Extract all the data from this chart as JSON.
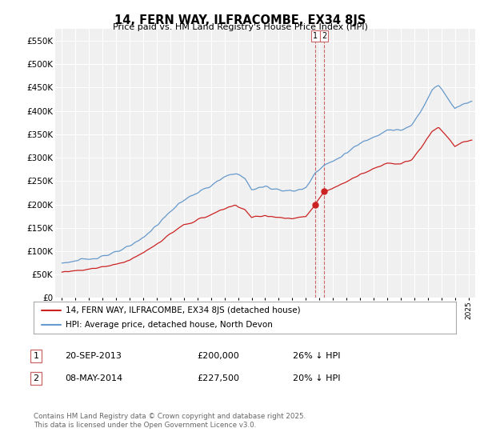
{
  "title": "14, FERN WAY, ILFRACOMBE, EX34 8JS",
  "subtitle": "Price paid vs. HM Land Registry's House Price Index (HPI)",
  "hpi_label": "HPI: Average price, detached house, North Devon",
  "price_label": "14, FERN WAY, ILFRACOMBE, EX34 8JS (detached house)",
  "transactions": [
    {
      "num": 1,
      "date": "20-SEP-2013",
      "price": 200000,
      "hpi_diff": "26% ↓ HPI"
    },
    {
      "num": 2,
      "date": "08-MAY-2014",
      "price": 227500,
      "hpi_diff": "20% ↓ HPI"
    }
  ],
  "transaction_dates_decimal": [
    2013.72,
    2014.35
  ],
  "transaction_prices": [
    200000,
    227500
  ],
  "vline_dates": [
    2013.72,
    2014.35
  ],
  "ylim": [
    0,
    575000
  ],
  "yticks": [
    0,
    50000,
    100000,
    150000,
    200000,
    250000,
    300000,
    350000,
    400000,
    450000,
    500000,
    550000
  ],
  "xlim_start": 1994.5,
  "xlim_end": 2025.5,
  "hpi_color": "#6699cc",
  "price_color": "#cc2222",
  "vline_color": "#cc6666",
  "background_color": "#f0f0f0",
  "grid_color": "#ffffff",
  "footnote": "Contains HM Land Registry data © Crown copyright and database right 2025.\nThis data is licensed under the Open Government Licence v3.0.",
  "hpi_anchors": {
    "1995.0": 75000,
    "1996.0": 79000,
    "1997.0": 83000,
    "1998.0": 90000,
    "1999.0": 97000,
    "2000.0": 110000,
    "2001.0": 130000,
    "2002.0": 155000,
    "2003.0": 185000,
    "2004.0": 210000,
    "2005.0": 225000,
    "2006.0": 240000,
    "2007.0": 258000,
    "2007.8": 268000,
    "2008.5": 255000,
    "2009.0": 232000,
    "2010.0": 238000,
    "2011.0": 232000,
    "2012.0": 228000,
    "2013.0": 235000,
    "2013.72": 270000,
    "2014.35": 284000,
    "2015.0": 292000,
    "2016.0": 310000,
    "2017.0": 330000,
    "2018.0": 345000,
    "2019.0": 360000,
    "2020.0": 358000,
    "2020.8": 368000,
    "2021.5": 400000,
    "2022.3": 445000,
    "2022.8": 455000,
    "2023.3": 435000,
    "2024.0": 405000,
    "2024.5": 415000,
    "2025.2": 420000
  },
  "price_scale_date": 2013.72,
  "price_scale_value": 200000,
  "price_scale_hpi": 270000,
  "price2_scale_date": 2014.35,
  "price2_scale_value": 227500,
  "price2_scale_hpi": 284000
}
